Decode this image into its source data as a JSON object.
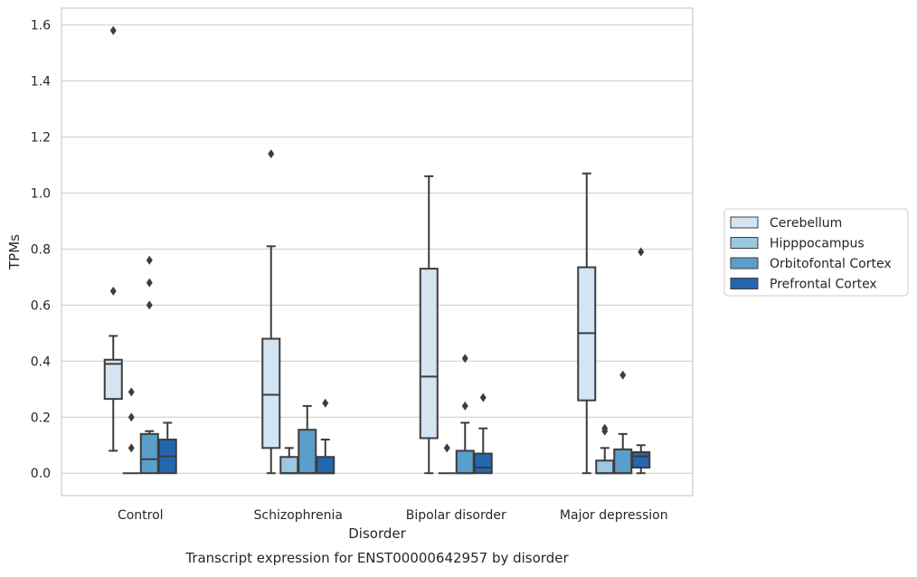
{
  "chart_data": {
    "type": "box",
    "title": "",
    "caption": "Transcript expression for ENST00000642957 by disorder",
    "xlabel": "Disorder",
    "ylabel": "TPMs",
    "ylim": [
      -0.08,
      1.66
    ],
    "yticks": [
      "0.0",
      "0.2",
      "0.4",
      "0.6",
      "0.8",
      "1.0",
      "1.2",
      "1.4",
      "1.6"
    ],
    "grid": true,
    "legend_position": "right",
    "categories": [
      "Control",
      "Schizophrenia",
      "Bipolar disorder",
      "Major depression"
    ],
    "series": [
      {
        "name": "Cerebellum",
        "color": "#d3e4f3",
        "boxes": [
          {
            "whisker_low": 0.08,
            "q1": 0.265,
            "median": 0.39,
            "q3": 0.405,
            "whisker_high": 0.49,
            "outliers": [
              1.58,
              0.65
            ]
          },
          {
            "whisker_low": 0.0,
            "q1": 0.09,
            "median": 0.28,
            "q3": 0.48,
            "whisker_high": 0.81,
            "outliers": [
              1.14
            ]
          },
          {
            "whisker_low": 0.0,
            "q1": 0.125,
            "median": 0.345,
            "q3": 0.73,
            "whisker_high": 1.06,
            "outliers": []
          },
          {
            "whisker_low": 0.0,
            "q1": 0.26,
            "median": 0.5,
            "q3": 0.735,
            "whisker_high": 1.07,
            "outliers": []
          }
        ]
      },
      {
        "name": "Hipppocampus",
        "color": "#9ac8e0",
        "boxes": [
          {
            "whisker_low": 0.0,
            "q1": 0.0,
            "median": 0.0,
            "q3": 0.0,
            "whisker_high": 0.0,
            "outliers": [
              0.29,
              0.2,
              0.09
            ]
          },
          {
            "whisker_low": 0.0,
            "q1": 0.0,
            "median": 0.0,
            "q3": 0.058,
            "whisker_high": 0.09,
            "outliers": []
          },
          {
            "whisker_low": 0.0,
            "q1": 0.0,
            "median": 0.0,
            "q3": 0.0,
            "whisker_high": 0.0,
            "outliers": [
              0.09
            ]
          },
          {
            "whisker_low": 0.0,
            "q1": 0.0,
            "median": 0.0,
            "q3": 0.045,
            "whisker_high": 0.09,
            "outliers": [
              0.16,
              0.15
            ]
          }
        ]
      },
      {
        "name": "Orbitofontal Cortex",
        "color": "#5a9fca",
        "boxes": [
          {
            "whisker_low": 0.0,
            "q1": 0.0,
            "median": 0.05,
            "q3": 0.14,
            "whisker_high": 0.15,
            "outliers": [
              0.76,
              0.68,
              0.6
            ]
          },
          {
            "whisker_low": 0.0,
            "q1": 0.0,
            "median": 0.0,
            "q3": 0.155,
            "whisker_high": 0.24,
            "outliers": []
          },
          {
            "whisker_low": 0.0,
            "q1": 0.0,
            "median": 0.0,
            "q3": 0.08,
            "whisker_high": 0.18,
            "outliers": [
              0.41,
              0.24
            ]
          },
          {
            "whisker_low": 0.0,
            "q1": 0.0,
            "median": 0.0,
            "q3": 0.085,
            "whisker_high": 0.14,
            "outliers": [
              0.35
            ]
          }
        ]
      },
      {
        "name": "Prefrontal Cortex",
        "color": "#2367ae",
        "boxes": [
          {
            "whisker_low": 0.0,
            "q1": 0.0,
            "median": 0.06,
            "q3": 0.12,
            "whisker_high": 0.18,
            "outliers": []
          },
          {
            "whisker_low": 0.0,
            "q1": 0.0,
            "median": 0.0,
            "q3": 0.058,
            "whisker_high": 0.12,
            "outliers": [
              0.25
            ]
          },
          {
            "whisker_low": 0.0,
            "q1": 0.0,
            "median": 0.02,
            "q3": 0.07,
            "whisker_high": 0.16,
            "outliers": [
              0.27
            ]
          },
          {
            "whisker_low": 0.0,
            "q1": 0.02,
            "median": 0.06,
            "q3": 0.075,
            "whisker_high": 0.1,
            "outliers": [
              0.79
            ]
          }
        ]
      }
    ]
  }
}
